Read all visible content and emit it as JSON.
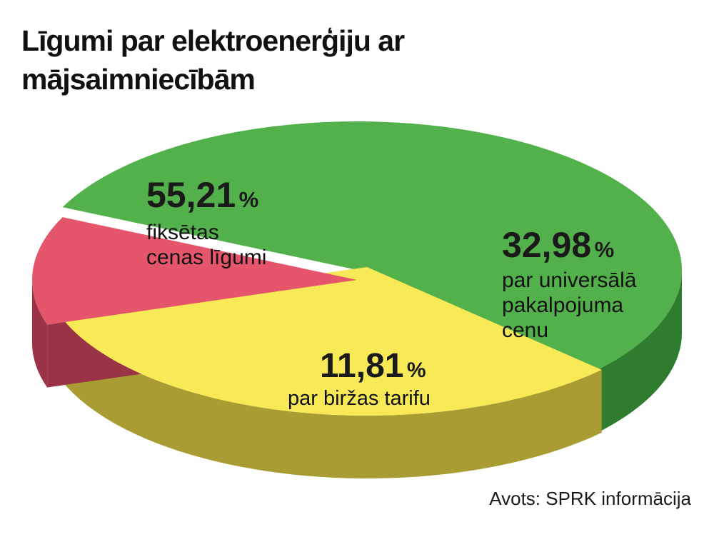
{
  "title": [
    "Līgumi par elektroenerģiju ar",
    "mājsaimniecībām"
  ],
  "source": "Avots: SPRK informācija",
  "chart_data": {
    "type": "pie",
    "slices": [
      {
        "value": 55.21,
        "value_text": "55,21",
        "pct": "%",
        "label": [
          "fiksētas",
          "cenas līgumi"
        ],
        "color": "#52b14b",
        "side": "#2e7d2e"
      },
      {
        "value": 32.98,
        "value_text": "32,98",
        "pct": "%",
        "label": [
          "par universālā",
          "pakalpojuma",
          "cenu"
        ],
        "color": "#f8ea56",
        "side": "#a89c32"
      },
      {
        "value": 11.81,
        "value_text": "11,81",
        "pct": "%",
        "label": [
          "par biržas tarifu"
        ],
        "color": "#e5566c",
        "side": "#9a3346"
      }
    ]
  }
}
